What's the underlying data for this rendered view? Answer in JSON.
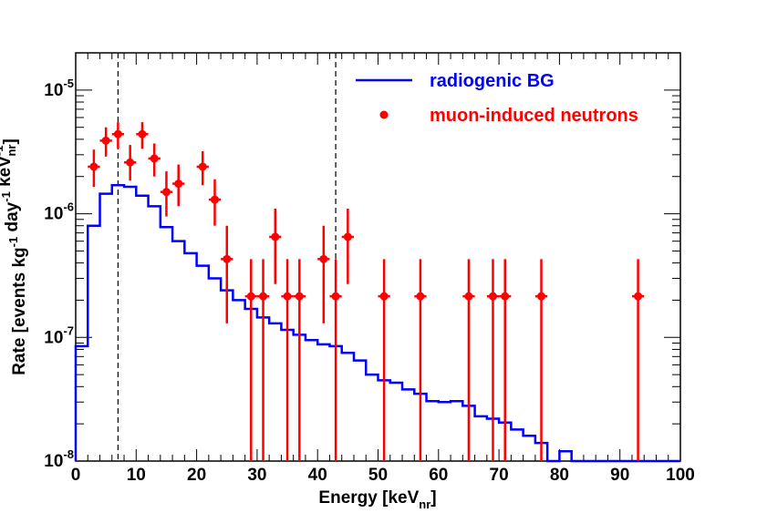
{
  "chart_data": {
    "type": "line",
    "x_axis": {
      "title_main": "Energy [keV",
      "title_sub": "nr",
      "title_end": "]",
      "range": [
        0,
        100
      ],
      "ticks": [
        0,
        10,
        20,
        30,
        40,
        50,
        60,
        70,
        80,
        90,
        100
      ],
      "tick_labels": [
        "0",
        "10",
        "20",
        "30",
        "40",
        "50",
        "60",
        "70",
        "80",
        "90",
        "100"
      ]
    },
    "y_axis": {
      "scale": "log",
      "range": [
        1e-08,
        2e-05
      ],
      "title_parts": [
        {
          "t": "Rate [events kg",
          "sup": "-1"
        },
        {
          "t": " day",
          "sup": "-1"
        },
        {
          "t": " keV",
          "sup": "-1",
          "sub": "nr"
        },
        {
          "t": "]"
        }
      ],
      "major_ticks": [
        {
          "value": 1e-08,
          "base": "10",
          "exp": "-8"
        },
        {
          "value": 1e-07,
          "base": "10",
          "exp": "-7"
        },
        {
          "value": 1e-06,
          "base": "10",
          "exp": "-6"
        },
        {
          "value": 1e-05,
          "base": "10",
          "exp": "-5"
        }
      ]
    },
    "vertical_lines": [
      7,
      43
    ],
    "series": [
      {
        "name": "radiogenic BG",
        "kind": "step",
        "color": "#0000ff",
        "bin_width": 2,
        "bin_lows": [
          0,
          2,
          4,
          6,
          8,
          10,
          12,
          14,
          16,
          18,
          20,
          22,
          24,
          26,
          28,
          30,
          32,
          34,
          36,
          38,
          40,
          42,
          44,
          46,
          48,
          50,
          52,
          54,
          56,
          58,
          60,
          62,
          64,
          66,
          68,
          70,
          72,
          74,
          76,
          78,
          80,
          82,
          84,
          86,
          88,
          90,
          92,
          94,
          96,
          98
        ],
        "values": [
          8.5e-08,
          8e-07,
          1.45e-06,
          1.7e-06,
          1.65e-06,
          1.4e-06,
          1.15e-06,
          7.8e-07,
          6e-07,
          4.8e-07,
          3.8e-07,
          3e-07,
          2.4e-07,
          2e-07,
          1.7e-07,
          1.45e-07,
          1.3e-07,
          1.15e-07,
          1.05e-07,
          9.5e-08,
          8.8e-08,
          8.5e-08,
          7.5e-08,
          6.5e-08,
          5e-08,
          4.5e-08,
          4.3e-08,
          3.8e-08,
          3.5e-08,
          3.05e-08,
          3e-08,
          3.05e-08,
          2.8e-08,
          2.3e-08,
          2.2e-08,
          2.05e-08,
          1.8e-08,
          1.6e-08,
          1.4e-08,
          1e-08,
          1.2e-08,
          1e-08,
          1e-08,
          1e-08,
          1e-08,
          1e-08,
          1e-08,
          1e-08,
          1e-08,
          1e-08
        ]
      },
      {
        "name": "muon-induced neutrons",
        "kind": "points_with_errors",
        "color": "#ff0000",
        "points": [
          {
            "x": 3,
            "y": 2.4e-06,
            "lo": 1.65e-06,
            "hi": 3.3e-06
          },
          {
            "x": 5,
            "y": 3.9e-06,
            "lo": 2.9e-06,
            "hi": 5e-06
          },
          {
            "x": 7,
            "y": 4.4e-06,
            "lo": 3.35e-06,
            "hi": 5.5e-06
          },
          {
            "x": 9,
            "y": 2.6e-06,
            "lo": 1.85e-06,
            "hi": 3.6e-06
          },
          {
            "x": 11,
            "y": 4.4e-06,
            "lo": 3.35e-06,
            "hi": 5.5e-06
          },
          {
            "x": 13,
            "y": 2.8e-06,
            "lo": 2e-06,
            "hi": 3.7e-06
          },
          {
            "x": 15,
            "y": 1.5e-06,
            "lo": 9.5e-07,
            "hi": 2.2e-06
          },
          {
            "x": 17,
            "y": 1.75e-06,
            "lo": 1.15e-06,
            "hi": 2.5e-06
          },
          {
            "x": 21,
            "y": 2.4e-06,
            "lo": 1.7e-06,
            "hi": 3.2e-06
          },
          {
            "x": 23,
            "y": 1.3e-06,
            "lo": 8e-07,
            "hi": 1.9e-06
          },
          {
            "x": 25,
            "y": 4.3e-07,
            "lo": 1.3e-07,
            "hi": 8e-07
          },
          {
            "x": 29,
            "y": 2.15e-07,
            "lo": 1e-08,
            "hi": 4.3e-07
          },
          {
            "x": 31,
            "y": 2.15e-07,
            "lo": 1e-08,
            "hi": 4.3e-07
          },
          {
            "x": 33,
            "y": 6.5e-07,
            "lo": 2.7e-07,
            "hi": 1.1e-06
          },
          {
            "x": 35,
            "y": 2.15e-07,
            "lo": 1e-08,
            "hi": 4.3e-07
          },
          {
            "x": 37,
            "y": 2.15e-07,
            "lo": 1e-08,
            "hi": 4.3e-07
          },
          {
            "x": 41,
            "y": 4.3e-07,
            "lo": 1.3e-07,
            "hi": 8e-07
          },
          {
            "x": 43,
            "y": 2.15e-07,
            "lo": 1e-08,
            "hi": 4.3e-07
          },
          {
            "x": 45,
            "y": 6.5e-07,
            "lo": 2.7e-07,
            "hi": 1.1e-06
          },
          {
            "x": 51,
            "y": 2.15e-07,
            "lo": 1e-08,
            "hi": 4.3e-07
          },
          {
            "x": 57,
            "y": 2.15e-07,
            "lo": 1e-08,
            "hi": 4.3e-07
          },
          {
            "x": 65,
            "y": 2.15e-07,
            "lo": 1e-08,
            "hi": 4.3e-07
          },
          {
            "x": 69,
            "y": 2.15e-07,
            "lo": 1e-08,
            "hi": 4.3e-07
          },
          {
            "x": 71,
            "y": 2.15e-07,
            "lo": 1e-08,
            "hi": 4.3e-07
          },
          {
            "x": 77,
            "y": 2.15e-07,
            "lo": 1e-08,
            "hi": 4.3e-07
          },
          {
            "x": 93,
            "y": 2.15e-07,
            "lo": 1e-08,
            "hi": 4.3e-07
          }
        ]
      }
    ],
    "legend": {
      "placement": "top-right",
      "entries": [
        {
          "label": "radiogenic BG",
          "color": "#0000ff",
          "marker": "line"
        },
        {
          "label": "muon-induced neutrons",
          "color": "#ff0000",
          "marker": "dot"
        }
      ]
    }
  }
}
